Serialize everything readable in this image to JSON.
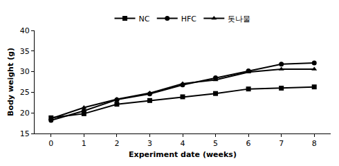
{
  "chart_data": {
    "type": "line",
    "x_label": "Experiment date (weeks)",
    "y_label": "Body weight (g)",
    "x": [
      0,
      1,
      2,
      3,
      4,
      5,
      6,
      7,
      8
    ],
    "xlim": [
      -0.5,
      8.5
    ],
    "xticks": [
      0,
      1,
      2,
      3,
      4,
      5,
      6,
      7,
      8
    ],
    "ylim": [
      15,
      40
    ],
    "yticks": [
      15,
      20,
      25,
      30,
      35,
      40
    ],
    "grid": false,
    "legend": "top",
    "series": [
      {
        "name": "NC",
        "color": "#000000",
        "marker": "square",
        "line_style": "solid",
        "values": [
          18.8,
          19.8,
          22.1,
          23.0,
          23.9,
          24.7,
          25.8,
          26.0,
          26.3
        ]
      },
      {
        "name": "HFC",
        "color": "#000000",
        "marker": "circle",
        "line_style": "solid",
        "values": [
          18.2,
          20.5,
          23.2,
          24.6,
          26.8,
          28.5,
          30.2,
          31.8,
          32.1
        ]
      },
      {
        "name": "돗나물",
        "color": "#000000",
        "marker": "triangle",
        "line_style": "solid",
        "values": [
          18.6,
          21.3,
          23.3,
          24.8,
          27.1,
          28.0,
          29.9,
          30.6,
          30.6
        ]
      }
    ]
  }
}
